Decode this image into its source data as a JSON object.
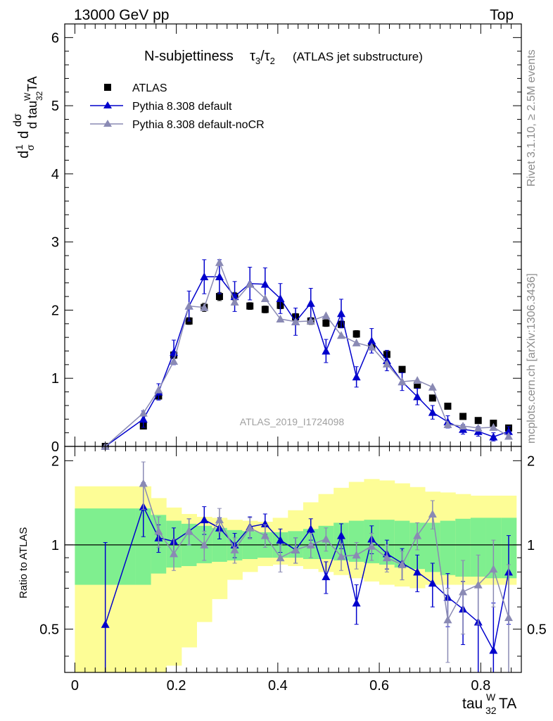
{
  "header": {
    "left": "13000 GeV pp",
    "right": "Top"
  },
  "side_text": {
    "rivet": "Rivet 3.1.10, ≥ 2.5M events",
    "mcplots": "mcplots.cern.ch [arXiv:1306.3436]"
  },
  "chart_data": [
    {
      "type": "scatter",
      "title": "N-subjettiness τ3/τ2 (ATLAS jet substructure)",
      "title_main": "N-subjettiness",
      "title_sub": "(ATLAS jet substructure)",
      "watermark": "ATLAS_2019_I1724098",
      "ylabel": "1/σ dσ/d tau^W_32TA",
      "xlim": [
        -0.02,
        0.88
      ],
      "ylim": [
        0,
        6.2
      ],
      "yticks": [
        0,
        1,
        2,
        3,
        4,
        5,
        6
      ],
      "legend_position": "top-left",
      "series": [
        {
          "name": "ATLAS",
          "color": "#000000",
          "marker": "square",
          "x": [
            0.06,
            0.135,
            0.165,
            0.195,
            0.225,
            0.255,
            0.285,
            0.315,
            0.345,
            0.375,
            0.405,
            0.435,
            0.465,
            0.495,
            0.525,
            0.555,
            0.585,
            0.615,
            0.645,
            0.675,
            0.705,
            0.735,
            0.765,
            0.795,
            0.825,
            0.855
          ],
          "y": [
            0.0,
            0.3,
            0.74,
            1.34,
            1.84,
            2.04,
            2.2,
            2.2,
            2.06,
            2.01,
            2.07,
            1.9,
            1.84,
            1.81,
            1.79,
            1.65,
            1.47,
            1.35,
            1.13,
            0.9,
            0.71,
            0.59,
            0.44,
            0.38,
            0.34,
            0.27
          ],
          "err": [
            0.0,
            0.03,
            0.04,
            0.05,
            0.05,
            0.06,
            0.06,
            0.06,
            0.05,
            0.05,
            0.05,
            0.05,
            0.05,
            0.05,
            0.05,
            0.05,
            0.05,
            0.04,
            0.04,
            0.04,
            0.03,
            0.03,
            0.03,
            0.03,
            0.03,
            0.03
          ]
        },
        {
          "name": "Pythia 8.308 default",
          "color": "#0000cc",
          "marker": "triangle",
          "x": [
            0.06,
            0.135,
            0.165,
            0.195,
            0.225,
            0.255,
            0.285,
            0.315,
            0.345,
            0.375,
            0.405,
            0.435,
            0.465,
            0.495,
            0.525,
            0.555,
            0.585,
            0.615,
            0.645,
            0.675,
            0.705,
            0.735,
            0.765,
            0.795,
            0.825,
            0.855
          ],
          "y": [
            0.0,
            0.4,
            0.8,
            1.38,
            2.06,
            2.49,
            2.49,
            2.2,
            2.39,
            2.38,
            2.17,
            1.83,
            2.1,
            1.4,
            1.95,
            1.02,
            1.55,
            1.26,
            0.95,
            0.73,
            0.5,
            0.36,
            0.25,
            0.22,
            0.14,
            0.22
          ],
          "err": [
            0.0,
            0.12,
            0.12,
            0.18,
            0.22,
            0.25,
            0.25,
            0.22,
            0.24,
            0.24,
            0.22,
            0.2,
            0.22,
            0.17,
            0.21,
            0.15,
            0.18,
            0.15,
            0.13,
            0.12,
            0.1,
            0.09,
            0.07,
            0.07,
            0.06,
            0.07
          ]
        },
        {
          "name": "Pythia 8.308 default-noCR",
          "color": "#8a8ab4",
          "marker": "triangle",
          "x": [
            0.06,
            0.135,
            0.165,
            0.195,
            0.225,
            0.255,
            0.285,
            0.315,
            0.345,
            0.375,
            0.405,
            0.435,
            0.465,
            0.495,
            0.525,
            0.555,
            0.585,
            0.615,
            0.645,
            0.675,
            0.705,
            0.735,
            0.765,
            0.795,
            0.825,
            0.855
          ],
          "y": [
            0.0,
            0.49,
            0.83,
            1.25,
            2.06,
            2.04,
            2.7,
            2.12,
            2.38,
            2.17,
            1.87,
            1.83,
            1.84,
            1.92,
            1.63,
            1.52,
            1.46,
            1.21,
            0.95,
            0.97,
            0.87,
            0.32,
            0.3,
            0.27,
            0.28,
            0.15
          ]
        }
      ]
    },
    {
      "type": "scatter",
      "ylabel": "Ratio to ATLAS",
      "xlabel": "tau^W_32TA",
      "xlim": [
        -0.02,
        0.88
      ],
      "ylim": [
        0.35,
        2.25
      ],
      "yticks_labeled": [
        "0.5",
        "1",
        "2"
      ],
      "xticks_labeled": [
        "0",
        "0.2",
        "0.4",
        "0.6",
        "0.8"
      ],
      "bands": {
        "green": "#7fef8f",
        "yellow": "#fdfd96",
        "edges": [
          0.0,
          0.12,
          0.15,
          0.18,
          0.21,
          0.24,
          0.27,
          0.3,
          0.33,
          0.36,
          0.39,
          0.42,
          0.45,
          0.48,
          0.51,
          0.54,
          0.57,
          0.6,
          0.63,
          0.66,
          0.69,
          0.72,
          0.75,
          0.78,
          0.81,
          0.84,
          0.87
        ],
        "green_lo": [
          0.72,
          0.72,
          0.79,
          0.83,
          0.84,
          0.86,
          0.87,
          0.88,
          0.89,
          0.9,
          0.9,
          0.9,
          0.89,
          0.89,
          0.88,
          0.87,
          0.86,
          0.85,
          0.83,
          0.82,
          0.8,
          0.78,
          0.77,
          0.77,
          0.76,
          0.76
        ],
        "green_hi": [
          1.35,
          1.35,
          1.28,
          1.22,
          1.19,
          1.17,
          1.15,
          1.13,
          1.12,
          1.11,
          1.11,
          1.12,
          1.14,
          1.17,
          1.2,
          1.22,
          1.23,
          1.23,
          1.22,
          1.2,
          1.2,
          1.22,
          1.24,
          1.25,
          1.25,
          1.25
        ],
        "yellow_lo": [
          0.35,
          0.35,
          0.35,
          0.37,
          0.43,
          0.53,
          0.64,
          0.75,
          0.8,
          0.84,
          0.85,
          0.84,
          0.82,
          0.8,
          0.78,
          0.76,
          0.74,
          0.72,
          0.71,
          0.7,
          0.72,
          0.72,
          0.72,
          0.72,
          0.72,
          0.72
        ],
        "yellow_hi": [
          1.62,
          1.62,
          1.47,
          1.36,
          1.29,
          1.26,
          1.25,
          1.23,
          1.22,
          1.21,
          1.25,
          1.33,
          1.42,
          1.52,
          1.6,
          1.68,
          1.72,
          1.7,
          1.66,
          1.61,
          1.55,
          1.54,
          1.52,
          1.5,
          1.5,
          1.5
        ]
      },
      "series": [
        {
          "name": "Pythia 8.308 default",
          "color": "#0000cc",
          "x": [
            0.06,
            0.135,
            0.165,
            0.195,
            0.225,
            0.255,
            0.285,
            0.315,
            0.345,
            0.375,
            0.405,
            0.435,
            0.465,
            0.495,
            0.525,
            0.555,
            0.585,
            0.615,
            0.645,
            0.675,
            0.705,
            0.735,
            0.765,
            0.795,
            0.825,
            0.855
          ],
          "y": [
            0.52,
            1.37,
            1.06,
            1.03,
            1.12,
            1.23,
            1.15,
            1.0,
            1.16,
            1.19,
            1.04,
            0.96,
            1.14,
            0.77,
            1.08,
            0.62,
            1.05,
            0.93,
            0.86,
            0.8,
            0.73,
            0.65,
            0.59,
            0.53,
            0.42,
            0.8
          ],
          "err": [
            0.5,
            0.3,
            0.12,
            0.12,
            0.12,
            0.14,
            0.1,
            0.1,
            0.1,
            0.1,
            0.1,
            0.1,
            0.1,
            0.1,
            0.11,
            0.1,
            0.12,
            0.11,
            0.11,
            0.12,
            0.13,
            0.14,
            0.15,
            0.18,
            0.2,
            0.28
          ]
        },
        {
          "name": "Pythia 8.308 default-noCR",
          "color": "#8a8ab4",
          "x": [
            0.06,
            0.135,
            0.165,
            0.195,
            0.225,
            0.255,
            0.285,
            0.315,
            0.345,
            0.375,
            0.405,
            0.435,
            0.465,
            0.495,
            0.525,
            0.555,
            0.585,
            0.615,
            0.645,
            0.675,
            0.705,
            0.735,
            0.765,
            0.795,
            0.825,
            0.855
          ],
          "y": [
            null,
            1.66,
            1.12,
            0.93,
            1.12,
            1.0,
            1.23,
            0.96,
            1.15,
            1.08,
            0.9,
            0.96,
            1.0,
            1.05,
            0.91,
            0.92,
            0.99,
            0.9,
            0.85,
            1.08,
            1.29,
            0.54,
            0.68,
            0.72,
            0.82,
            0.55
          ],
          "err": [
            0,
            0.32,
            0.14,
            0.12,
            0.12,
            0.12,
            0.12,
            0.1,
            0.1,
            0.1,
            0.1,
            0.1,
            0.1,
            0.1,
            0.1,
            0.1,
            0.11,
            0.1,
            0.1,
            0.12,
            0.15,
            0.16,
            0.2,
            0.2,
            0.22,
            0.3
          ]
        }
      ]
    }
  ]
}
